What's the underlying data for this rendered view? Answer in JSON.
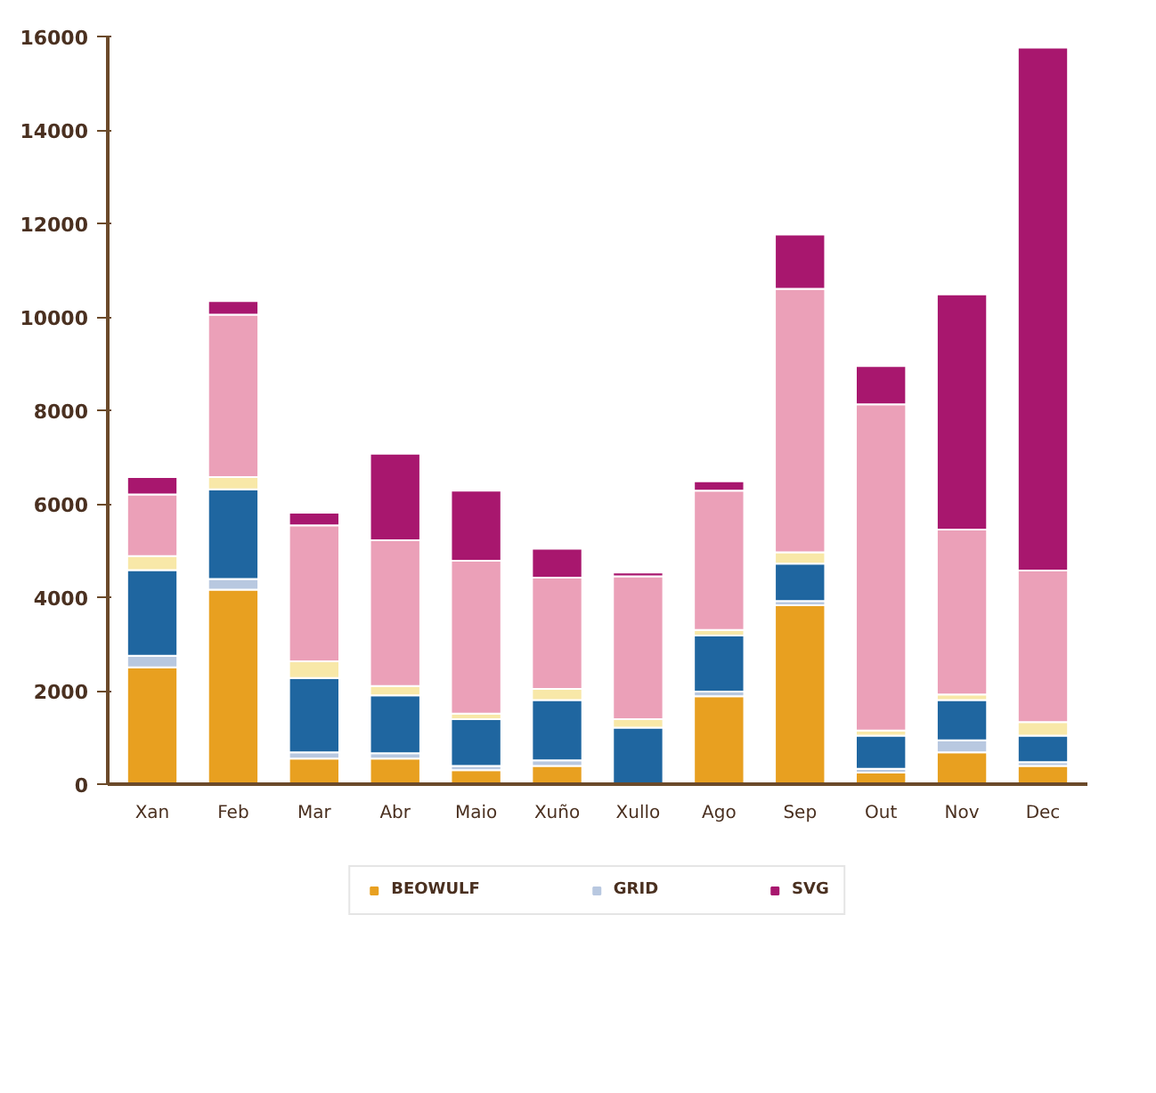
{
  "chart_data": {
    "type": "bar",
    "stacked": true,
    "categories": [
      "Xan",
      "Feb",
      "Mar",
      "Abr",
      "Maio",
      "Xuño",
      "Xullo",
      "Ago",
      "Sep",
      "Out",
      "Nov",
      "Dec"
    ],
    "series": [
      {
        "name": "BEOWULF",
        "color": "#e8a020",
        "values": [
          2500,
          4160,
          550,
          550,
          300,
          390,
          0,
          1880,
          3830,
          250,
          680,
          390
        ]
      },
      {
        "name": "GRID",
        "color": "#b8c8e0",
        "values": [
          250,
          230,
          130,
          110,
          90,
          120,
          0,
          100,
          90,
          80,
          260,
          80
        ]
      },
      {
        "color": "#1f66a0",
        "values": [
          1830,
          1920,
          1590,
          1240,
          1000,
          1290,
          1210,
          1200,
          800,
          710,
          860,
          570
        ]
      },
      {
        "color": "#f8e8a8",
        "values": [
          300,
          260,
          360,
          200,
          120,
          240,
          180,
          120,
          240,
          110,
          120,
          290
        ]
      },
      {
        "color": "#eba0b8",
        "values": [
          1320,
          3480,
          2910,
          3120,
          3270,
          2380,
          3060,
          2980,
          5640,
          6980,
          3530,
          3240
        ]
      },
      {
        "name": "SVG",
        "color": "#a8176e",
        "values": [
          370,
          290,
          270,
          1850,
          1500,
          620,
          80,
          200,
          1160,
          820,
          5030,
          11190
        ]
      }
    ],
    "ylim": [
      0,
      16000
    ],
    "yticks": [
      0,
      2000,
      4000,
      6000,
      8000,
      10000,
      12000,
      14000,
      16000
    ],
    "grid": false,
    "legend": "bottom"
  }
}
